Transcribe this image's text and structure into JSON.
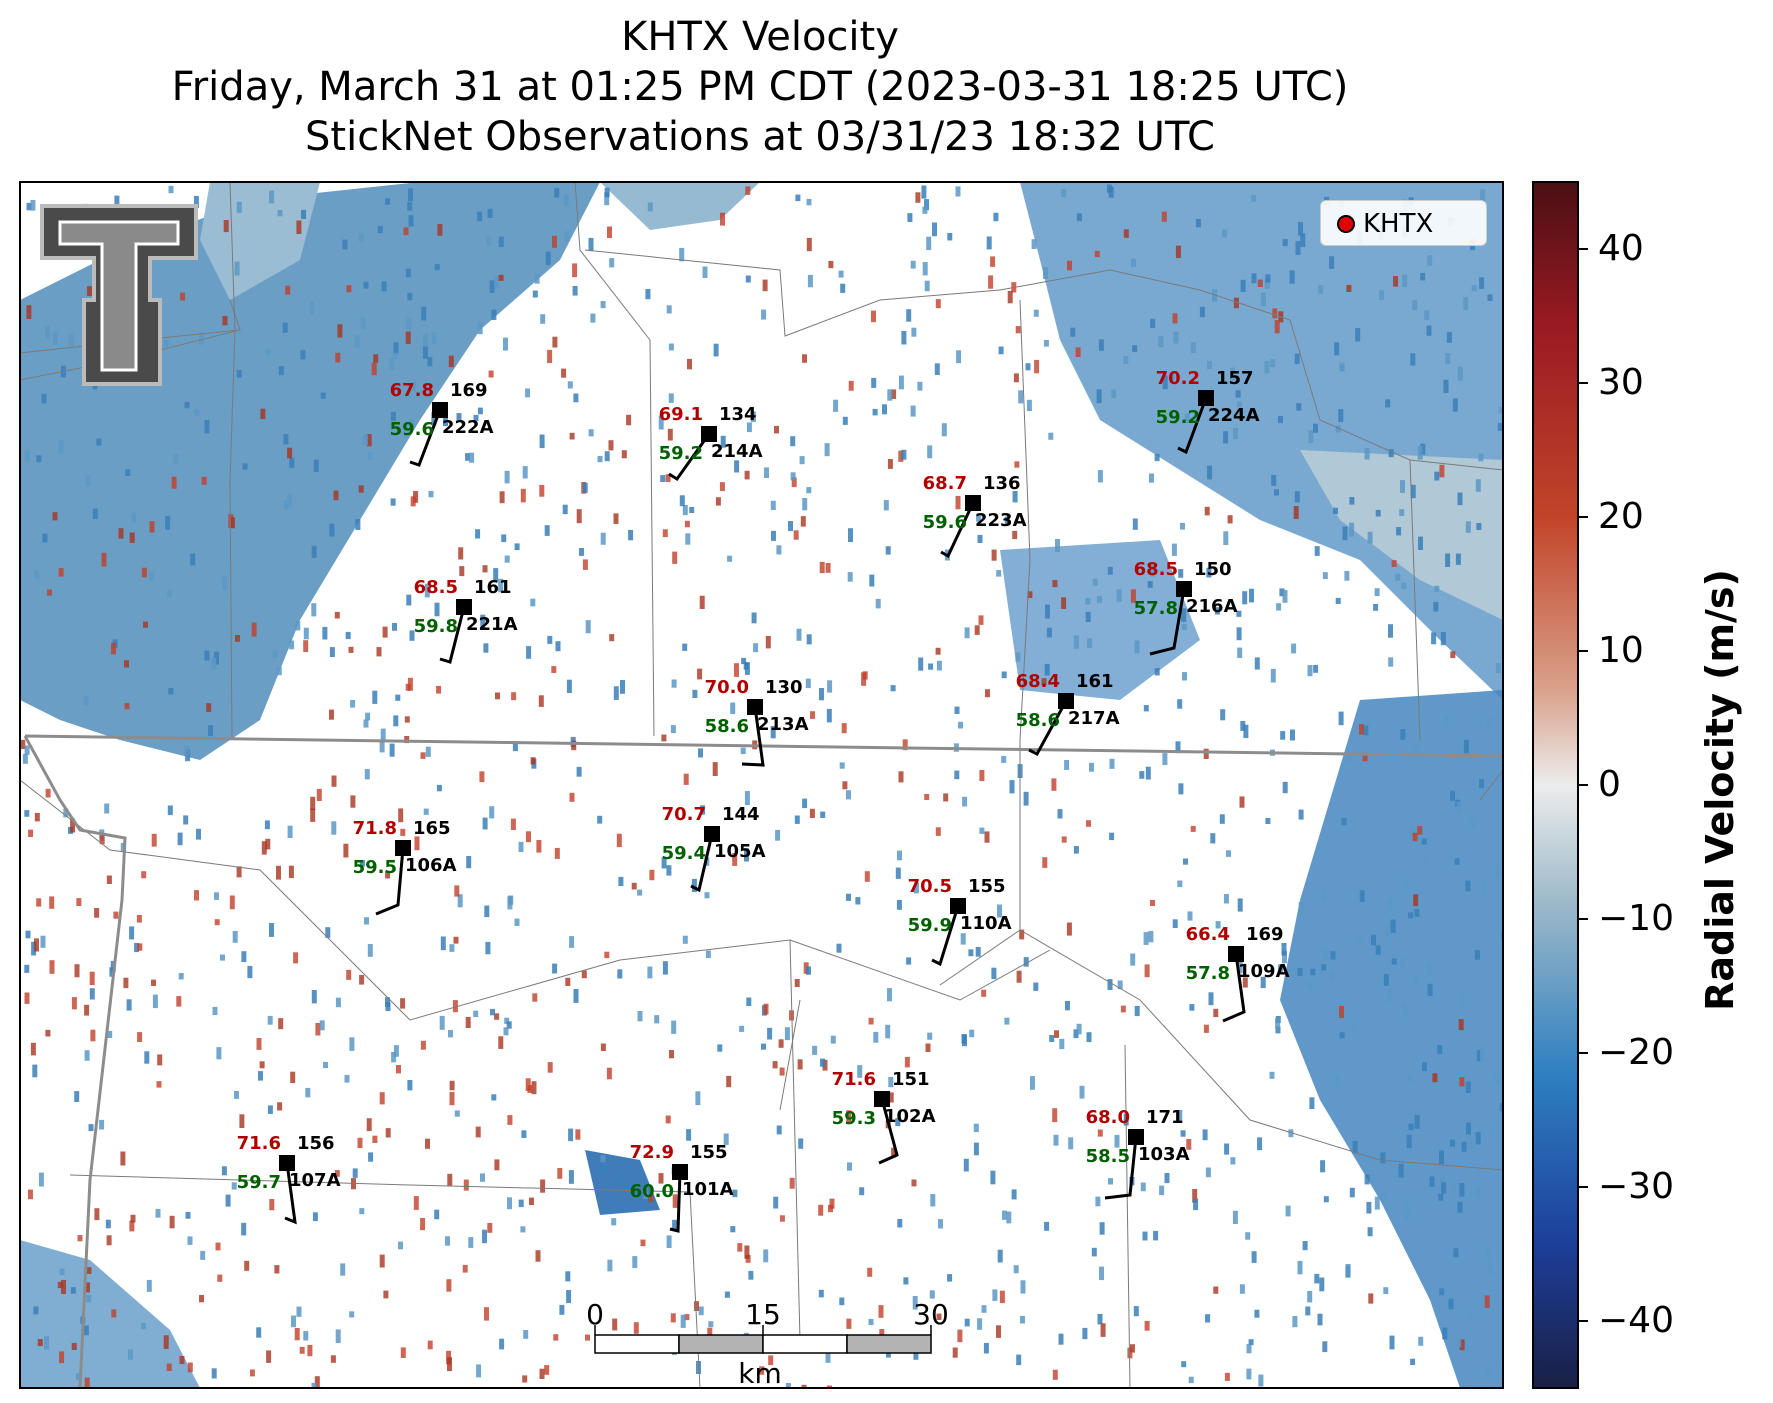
{
  "title": {
    "line1": "KHTX Velocity",
    "line2": "Friday, March 31 at 01:25 PM CDT (2023-03-31 18:25 UTC)",
    "line3": "StickNet Observations at 03/31/23 18:32 UTC"
  },
  "legend": {
    "label": "KHTX",
    "marker_color": "#e00000"
  },
  "colorbar": {
    "label": "Radial Velocity (m/s)",
    "ticks": [
      "40",
      "30",
      "20",
      "10",
      "0",
      "−10",
      "−20",
      "−30",
      "−40"
    ],
    "range": [
      -45,
      45
    ],
    "colors": [
      "#1a1f45",
      "#1c3f9a",
      "#2f7fc1",
      "#9bb8c8",
      "#e8e8e8",
      "#d9a089",
      "#c2452a",
      "#9a1a22",
      "#4a0f14"
    ]
  },
  "scalebar": {
    "ticks": [
      "0",
      "15",
      "30"
    ],
    "unit": "km"
  },
  "logo": {
    "name": "Texas Tech logo",
    "text": "TT"
  },
  "colors": {
    "temp": "#b00000",
    "dew": "#006000",
    "station": "#000000",
    "neg_velocity": "#3a7fb8",
    "pos_velocity": "#c0402a"
  },
  "stations": [
    {
      "id": "222A",
      "temp": "67.8",
      "dew": "59.6",
      "dir": "169"
    },
    {
      "id": "214A",
      "temp": "69.1",
      "dew": "59.2",
      "dir": "134"
    },
    {
      "id": "224A",
      "temp": "70.2",
      "dew": "59.2",
      "dir": "157"
    },
    {
      "id": "223A",
      "temp": "68.7",
      "dew": "59.6",
      "dir": "136"
    },
    {
      "id": "221A",
      "temp": "68.5",
      "dew": "59.8",
      "dir": "161"
    },
    {
      "id": "216A",
      "temp": "68.5",
      "dew": "57.8",
      "dir": "150"
    },
    {
      "id": "213A",
      "temp": "70.0",
      "dew": "58.6",
      "dir": "130"
    },
    {
      "id": "217A",
      "temp": "68.4",
      "dew": "58.6",
      "dir": "161"
    },
    {
      "id": "106A",
      "temp": "71.8",
      "dew": "59.5",
      "dir": "165"
    },
    {
      "id": "105A",
      "temp": "70.7",
      "dew": "59.4",
      "dir": "144"
    },
    {
      "id": "110A",
      "temp": "70.5",
      "dew": "59.9",
      "dir": "155"
    },
    {
      "id": "109A",
      "temp": "66.4",
      "dew": "57.8",
      "dir": "169"
    },
    {
      "id": "102A",
      "temp": "71.6",
      "dew": "59.3",
      "dir": "151"
    },
    {
      "id": "103A",
      "temp": "68.0",
      "dew": "58.5",
      "dir": "171"
    },
    {
      "id": "107A",
      "temp": "71.6",
      "dew": "59.7",
      "dir": "156"
    },
    {
      "id": "101A",
      "temp": "72.9",
      "dew": "60.0",
      "dir": "155"
    }
  ]
}
